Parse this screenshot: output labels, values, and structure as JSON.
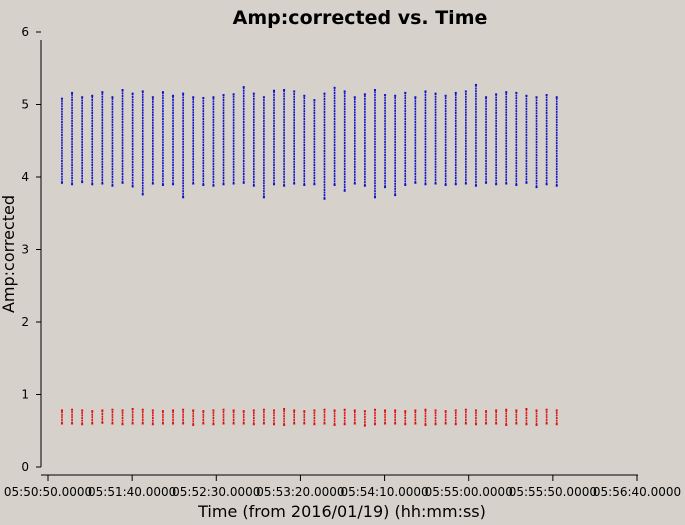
{
  "chart_data": {
    "type": "scatter",
    "title": "Amp:corrected vs. Time",
    "xlabel": "Time (from 2016/01/19) (hh:mm:ss)",
    "ylabel": "Amp:corrected",
    "xlim": [
      "05:50:50",
      "05:56:40"
    ],
    "ylim": [
      0,
      6
    ],
    "x_tick_labels": [
      "05:50:50.0000",
      "05:51:40.0000",
      "05:52:30.0000",
      "05:53:20.0000",
      "05:54:10.0000",
      "05:55:00.0000",
      "05:55:50.0000",
      "05:56:40.0000"
    ],
    "y_tick_labels": [
      "0",
      "1",
      "2",
      "3",
      "4",
      "5",
      "6"
    ],
    "grid": false,
    "background": "#d6d2cb",
    "series": [
      {
        "color": "#1010c8",
        "x": [
          "05:50:58",
          "05:51:04",
          "05:51:10",
          "05:51:16",
          "05:51:22",
          "05:51:28",
          "05:51:34",
          "05:51:40",
          "05:51:46",
          "05:51:52",
          "05:51:58",
          "05:52:04",
          "05:52:10",
          "05:52:16",
          "05:52:22",
          "05:52:28",
          "05:52:34",
          "05:52:40",
          "05:52:46",
          "05:52:52",
          "05:52:58",
          "05:53:04",
          "05:53:10",
          "05:53:16",
          "05:53:22",
          "05:53:28",
          "05:53:34",
          "05:53:40",
          "05:53:46",
          "05:53:52",
          "05:53:58",
          "05:54:04",
          "05:54:10",
          "05:54:16",
          "05:54:22",
          "05:54:28",
          "05:54:34",
          "05:54:40",
          "05:54:46",
          "05:54:52",
          "05:54:58",
          "05:55:04",
          "05:55:10",
          "05:55:16",
          "05:55:22",
          "05:55:28",
          "05:55:34",
          "05:55:40",
          "05:55:46",
          "05:55:52"
        ],
        "y_min": [
          3.92,
          3.9,
          3.93,
          3.9,
          3.91,
          3.88,
          3.92,
          3.87,
          3.76,
          3.91,
          3.89,
          3.9,
          3.72,
          3.91,
          3.89,
          3.88,
          3.9,
          3.91,
          3.92,
          3.88,
          3.72,
          3.9,
          3.88,
          3.91,
          3.89,
          3.9,
          3.7,
          3.89,
          3.81,
          3.91,
          3.88,
          3.72,
          3.86,
          3.75,
          3.89,
          3.92,
          3.9,
          3.91,
          3.89,
          3.9,
          3.91,
          3.88,
          3.92,
          3.9,
          3.91,
          3.89,
          3.92,
          3.86,
          3.9,
          3.88
        ],
        "y_max": [
          5.08,
          5.16,
          5.1,
          5.12,
          5.17,
          5.1,
          5.2,
          5.15,
          5.18,
          5.1,
          5.17,
          5.12,
          5.15,
          5.1,
          5.09,
          5.1,
          5.13,
          5.14,
          5.24,
          5.15,
          5.1,
          5.19,
          5.2,
          5.18,
          5.12,
          5.06,
          5.15,
          5.23,
          5.18,
          5.1,
          5.14,
          5.2,
          5.13,
          5.12,
          5.16,
          5.1,
          5.18,
          5.15,
          5.12,
          5.16,
          5.18,
          5.27,
          5.1,
          5.14,
          5.17,
          5.16,
          5.12,
          5.1,
          5.13,
          5.1
        ]
      },
      {
        "color": "#dd1111",
        "x": [
          "05:50:58",
          "05:51:04",
          "05:51:10",
          "05:51:16",
          "05:51:22",
          "05:51:28",
          "05:51:34",
          "05:51:40",
          "05:51:46",
          "05:51:52",
          "05:51:58",
          "05:52:04",
          "05:52:10",
          "05:52:16",
          "05:52:22",
          "05:52:28",
          "05:52:34",
          "05:52:40",
          "05:52:46",
          "05:52:52",
          "05:52:58",
          "05:53:04",
          "05:53:10",
          "05:53:16",
          "05:53:22",
          "05:53:28",
          "05:53:34",
          "05:53:40",
          "05:53:46",
          "05:53:52",
          "05:53:58",
          "05:54:04",
          "05:54:10",
          "05:54:16",
          "05:54:22",
          "05:54:28",
          "05:54:34",
          "05:54:40",
          "05:54:46",
          "05:54:52",
          "05:54:58",
          "05:55:04",
          "05:55:10",
          "05:55:16",
          "05:55:22",
          "05:55:28",
          "05:55:34",
          "05:55:40",
          "05:55:46",
          "05:55:52"
        ],
        "y_min": [
          0.6,
          0.6,
          0.59,
          0.6,
          0.61,
          0.6,
          0.59,
          0.6,
          0.6,
          0.59,
          0.6,
          0.6,
          0.6,
          0.58,
          0.6,
          0.59,
          0.6,
          0.6,
          0.6,
          0.59,
          0.6,
          0.59,
          0.58,
          0.6,
          0.6,
          0.59,
          0.6,
          0.58,
          0.59,
          0.6,
          0.57,
          0.59,
          0.6,
          0.6,
          0.59,
          0.6,
          0.58,
          0.59,
          0.6,
          0.59,
          0.6,
          0.59,
          0.6,
          0.6,
          0.58,
          0.6,
          0.59,
          0.58,
          0.6,
          0.59
        ],
        "y_max": [
          0.78,
          0.79,
          0.78,
          0.77,
          0.78,
          0.79,
          0.78,
          0.8,
          0.79,
          0.78,
          0.77,
          0.78,
          0.79,
          0.78,
          0.77,
          0.78,
          0.79,
          0.78,
          0.77,
          0.78,
          0.79,
          0.78,
          0.8,
          0.78,
          0.77,
          0.78,
          0.79,
          0.78,
          0.79,
          0.78,
          0.77,
          0.79,
          0.78,
          0.78,
          0.77,
          0.78,
          0.79,
          0.78,
          0.77,
          0.78,
          0.79,
          0.78,
          0.77,
          0.78,
          0.79,
          0.78,
          0.8,
          0.78,
          0.79,
          0.78
        ]
      }
    ]
  }
}
